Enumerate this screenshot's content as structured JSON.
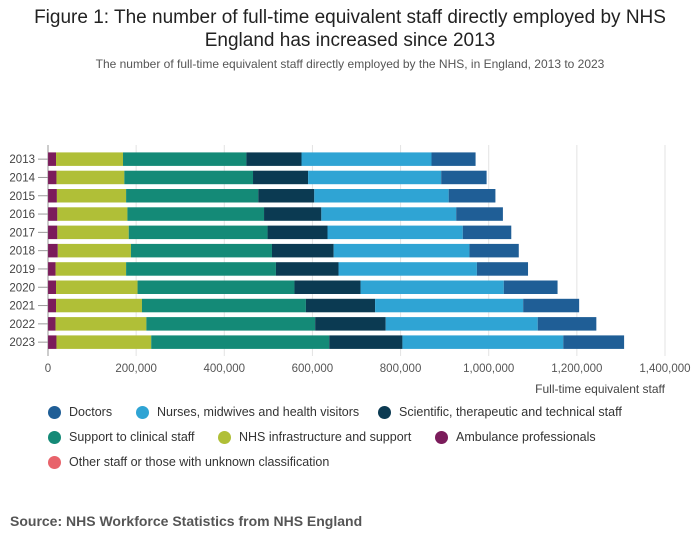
{
  "title": "Figure 1: The number of full-time equivalent staff directly employed by NHS England has increased since 2013",
  "subtitle": "The number of full-time equivalent staff directly employed by the NHS, in England, 2013 to 2023",
  "source": "Source: NHS Workforce Statistics from NHS England",
  "chart_data": {
    "type": "bar",
    "orientation": "horizontal",
    "stacked": true,
    "categories": [
      "2013",
      "2014",
      "2015",
      "2016",
      "2017",
      "2018",
      "2019",
      "2020",
      "2021",
      "2022",
      "2023"
    ],
    "xlabel": "Full-time equivalent staff",
    "xlim": [
      0,
      1400000
    ],
    "x_ticks": [
      0,
      200000,
      400000,
      600000,
      800000,
      1000000,
      1200000,
      1400000
    ],
    "x_tick_labels": [
      "0",
      "200,000",
      "400,000",
      "600,000",
      "800,000",
      "1,000,000",
      "1,200,000",
      "1,400,000"
    ],
    "grid": "vertical",
    "legend_position": "bottom",
    "series": [
      {
        "name": "Other staff or those with unknown classification",
        "color": "#e8636b",
        "values": [
          200,
          200,
          200,
          200,
          200,
          200,
          200,
          200,
          200,
          200,
          200
        ]
      },
      {
        "name": "Ambulance professionals",
        "color": "#7b1c5b",
        "values": [
          18000,
          19000,
          20000,
          21000,
          21000,
          22000,
          17000,
          18000,
          18000,
          17000,
          19000
        ]
      },
      {
        "name": "NHS infrastructure and support",
        "color": "#b0bf37",
        "values": [
          152000,
          154000,
          157000,
          159000,
          162000,
          166000,
          160000,
          185000,
          195000,
          206000,
          215000
        ]
      },
      {
        "name": "Support to clinical staff",
        "color": "#148a77",
        "values": [
          280000,
          292000,
          300000,
          310000,
          315000,
          320000,
          340000,
          356000,
          372000,
          383000,
          404000
        ]
      },
      {
        "name": "Scientific, therapeutic and technical staff",
        "color": "#0b3a52",
        "values": [
          125000,
          125000,
          127000,
          130000,
          136000,
          140000,
          142000,
          150000,
          157000,
          160000,
          166000
        ]
      },
      {
        "name": "Nurses, midwives and health visitors",
        "color": "#2fa4d4",
        "values": [
          295000,
          302000,
          305000,
          306000,
          307000,
          308000,
          314000,
          325000,
          336000,
          345000,
          365000
        ]
      },
      {
        "name": "Doctors",
        "color": "#1f5e96",
        "values": [
          100000,
          103000,
          106000,
          106000,
          110000,
          112000,
          116000,
          122000,
          127000,
          133000,
          138000
        ]
      }
    ]
  },
  "legend": [
    {
      "label": "Doctors",
      "color": "#1f5e96"
    },
    {
      "label": "Nurses, midwives and health visitors",
      "color": "#2fa4d4"
    },
    {
      "label": "Scientific, therapeutic and technical staff",
      "color": "#0b3a52"
    },
    {
      "label": "Support to clinical staff",
      "color": "#148a77"
    },
    {
      "label": "NHS infrastructure and support",
      "color": "#b0bf37"
    },
    {
      "label": "Ambulance professionals",
      "color": "#7b1c5b"
    },
    {
      "label": "Other staff or those with unknown classification",
      "color": "#e8636b"
    }
  ]
}
